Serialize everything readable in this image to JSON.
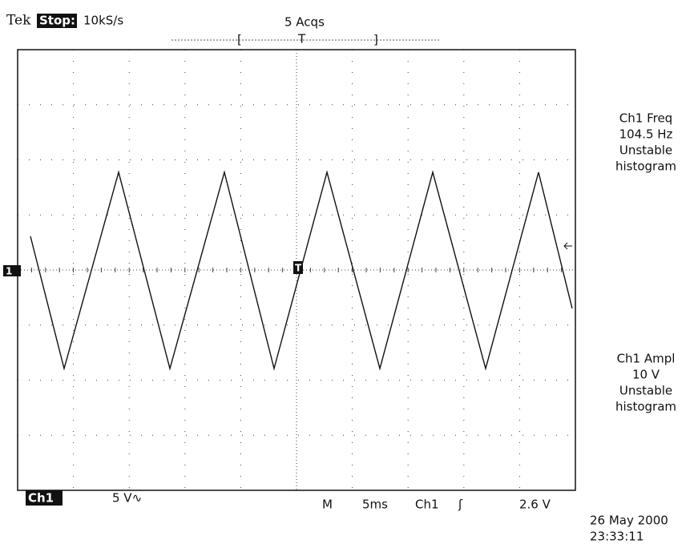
{
  "header": {
    "brand": "Tek",
    "status": "Stop:",
    "rate": "10kS/s",
    "acquisitions": "5 Acqs",
    "trigger_marker": "T"
  },
  "screen": {
    "channel_marker": "1",
    "trigger_point": "T"
  },
  "measurements": [
    {
      "lines": [
        "Ch1 Freq",
        "104.5 Hz",
        "Unstable",
        "histogram"
      ]
    },
    {
      "lines": [
        "Ch1 Ampl",
        "10 V",
        "Unstable",
        "histogram"
      ]
    }
  ],
  "footer": {
    "channel": "Ch1",
    "volts_per_div": "5 V∿",
    "mode": "M",
    "time_per_div": "5ms",
    "trigger_source": "Ch1",
    "trigger_slope": "ʃ",
    "trigger_level": "2.6 V",
    "date": "26 May 2000",
    "time": "23:33:11"
  }
}
